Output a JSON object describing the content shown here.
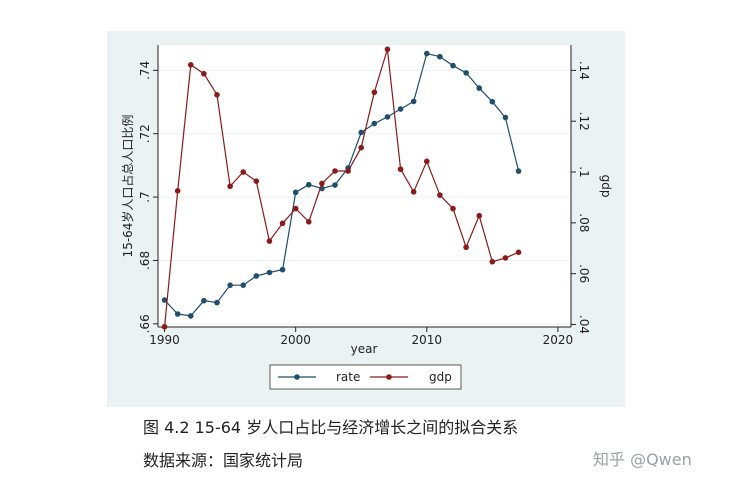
{
  "caption": {
    "title": "图 4.2 15-64 岁人口占比与经济增长之间的拟合关系",
    "source": "数据来源：国家统计局"
  },
  "watermark": "知乎 @Qwen",
  "colors": {
    "rate": "#1f4e6e",
    "gdp": "#8b1a1a",
    "panel": "#eaf2f3",
    "plot": "#ffffff",
    "grid": "#eaf2f3"
  },
  "chart_data": {
    "type": "line",
    "xlabel": "year",
    "ylabel_left": "15-64岁人口占总人口比例",
    "ylabel_right": "gdp",
    "xlim": [
      1989.5,
      2021
    ],
    "ylim_left": [
      0.659,
      0.748
    ],
    "ylim_right": [
      0.039,
      0.15
    ],
    "xticks": [
      1990,
      2000,
      2010,
      2020
    ],
    "yticks_left": [
      0.66,
      0.68,
      0.7,
      0.72,
      0.74
    ],
    "yticks_left_labels": [
      ".66",
      ".68",
      ".7",
      ".72",
      ".74"
    ],
    "yticks_right": [
      0.04,
      0.06,
      0.08,
      0.1,
      0.12,
      0.14
    ],
    "yticks_right_labels": [
      ".04",
      ".06",
      ".08",
      ".1",
      ".12",
      ".14"
    ],
    "grid": true,
    "legend_position": "bottom",
    "x": [
      1990,
      1991,
      1992,
      1993,
      1994,
      1995,
      1996,
      1997,
      1998,
      1999,
      2000,
      2001,
      2002,
      2003,
      2004,
      2005,
      2006,
      2007,
      2008,
      2009,
      2010,
      2011,
      2012,
      2013,
      2014,
      2015,
      2016,
      2017
    ],
    "series": [
      {
        "name": "rate",
        "axis": "left",
        "values": [
          0.6675,
          0.6631,
          0.6625,
          0.6673,
          0.6667,
          0.6722,
          0.6722,
          0.6751,
          0.6762,
          0.6771,
          0.7015,
          0.7039,
          0.7027,
          0.7038,
          0.7092,
          0.7204,
          0.7232,
          0.7253,
          0.7278,
          0.7302,
          0.7453,
          0.7443,
          0.7415,
          0.7392,
          0.7344,
          0.7301,
          0.7251,
          0.7082
        ]
      },
      {
        "name": "gdp",
        "axis": "right",
        "values": [
          0.0391,
          0.0926,
          0.1422,
          0.1387,
          0.1304,
          0.0944,
          0.1,
          0.0964,
          0.0728,
          0.0798,
          0.0856,
          0.0804,
          0.0955,
          0.1004,
          0.1004,
          0.1096,
          0.1314,
          0.1483,
          0.1011,
          0.0922,
          0.1042,
          0.0909,
          0.0856,
          0.0704,
          0.0828,
          0.0647,
          0.0662,
          0.0684
        ]
      }
    ]
  }
}
